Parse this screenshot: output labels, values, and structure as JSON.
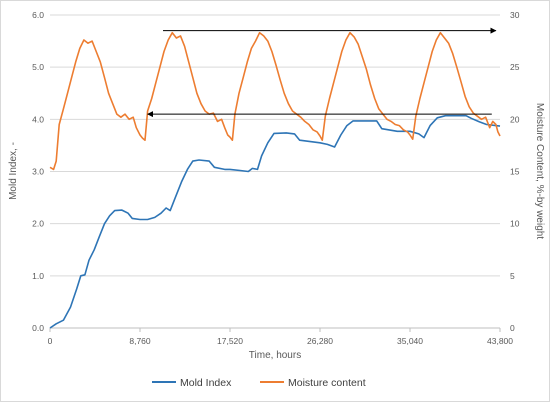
{
  "chart_data": {
    "type": "line",
    "xlabel": "Time, hours",
    "ylabel_left": "Mold Index, -",
    "ylabel_right": "Moisture Content, %-by weight",
    "xlim": [
      0,
      43800
    ],
    "ylim_left": [
      0,
      6
    ],
    "ylim_right": [
      0,
      30
    ],
    "x_ticks": [
      0,
      8760,
      17520,
      26280,
      35040,
      43800
    ],
    "x_tick_labels": [
      "0",
      "8,760",
      "17,520",
      "26,280",
      "35,040",
      "43,800"
    ],
    "y_left_ticks": [
      0,
      1,
      2,
      3,
      4,
      5,
      6
    ],
    "y_left_tick_labels": [
      "0.0",
      "1.0",
      "2.0",
      "3.0",
      "4.0",
      "5.0",
      "6.0"
    ],
    "y_right_ticks": [
      0,
      5,
      10,
      15,
      20,
      25,
      30
    ],
    "y_right_tick_labels": [
      "0",
      "5",
      "10",
      "15",
      "20",
      "25",
      "30"
    ],
    "grid": "horizontal",
    "legend_position": "bottom",
    "series": [
      {
        "name": "Mold Index",
        "axis": "left",
        "color": "#2e75b6",
        "points": [
          [
            0,
            0.0
          ],
          [
            600,
            0.08
          ],
          [
            1300,
            0.15
          ],
          [
            2000,
            0.4
          ],
          [
            2600,
            0.75
          ],
          [
            3000,
            1.0
          ],
          [
            3400,
            1.02
          ],
          [
            3800,
            1.3
          ],
          [
            4300,
            1.5
          ],
          [
            4800,
            1.75
          ],
          [
            5300,
            2.0
          ],
          [
            5800,
            2.15
          ],
          [
            6300,
            2.25
          ],
          [
            7000,
            2.26
          ],
          [
            7600,
            2.2
          ],
          [
            8000,
            2.1
          ],
          [
            8760,
            2.08
          ],
          [
            9500,
            2.08
          ],
          [
            10200,
            2.12
          ],
          [
            10800,
            2.2
          ],
          [
            11300,
            2.3
          ],
          [
            11700,
            2.25
          ],
          [
            12200,
            2.5
          ],
          [
            12800,
            2.8
          ],
          [
            13400,
            3.05
          ],
          [
            13900,
            3.2
          ],
          [
            14500,
            3.22
          ],
          [
            15500,
            3.2
          ],
          [
            16000,
            3.08
          ],
          [
            17000,
            3.04
          ],
          [
            17520,
            3.04
          ],
          [
            18500,
            3.02
          ],
          [
            19300,
            3.0
          ],
          [
            19700,
            3.06
          ],
          [
            20200,
            3.04
          ],
          [
            20600,
            3.3
          ],
          [
            21200,
            3.55
          ],
          [
            21800,
            3.73
          ],
          [
            23000,
            3.74
          ],
          [
            23800,
            3.72
          ],
          [
            24300,
            3.6
          ],
          [
            26280,
            3.55
          ],
          [
            27000,
            3.52
          ],
          [
            27700,
            3.47
          ],
          [
            28300,
            3.7
          ],
          [
            28900,
            3.88
          ],
          [
            29500,
            3.97
          ],
          [
            31800,
            3.97
          ],
          [
            32300,
            3.82
          ],
          [
            33800,
            3.77
          ],
          [
            35040,
            3.77
          ],
          [
            35900,
            3.72
          ],
          [
            36400,
            3.65
          ],
          [
            37000,
            3.88
          ],
          [
            37700,
            4.03
          ],
          [
            38500,
            4.07
          ],
          [
            40500,
            4.07
          ],
          [
            41000,
            4.02
          ],
          [
            41800,
            3.95
          ],
          [
            42500,
            3.9
          ],
          [
            43800,
            3.87
          ]
        ]
      },
      {
        "name": "Moisture content",
        "axis": "right",
        "color": "#ed7d31",
        "points": [
          [
            0,
            15.4
          ],
          [
            350,
            15.2
          ],
          [
            600,
            16.0
          ],
          [
            900,
            19.5
          ],
          [
            1300,
            21.0
          ],
          [
            1700,
            22.5
          ],
          [
            2100,
            24.0
          ],
          [
            2500,
            25.5
          ],
          [
            2900,
            26.8
          ],
          [
            3300,
            27.6
          ],
          [
            3700,
            27.3
          ],
          [
            4100,
            27.5
          ],
          [
            4500,
            26.5
          ],
          [
            4900,
            25.5
          ],
          [
            5300,
            24.0
          ],
          [
            5700,
            22.5
          ],
          [
            6100,
            21.5
          ],
          [
            6500,
            20.5
          ],
          [
            6900,
            20.2
          ],
          [
            7300,
            20.5
          ],
          [
            7700,
            20.0
          ],
          [
            8100,
            20.2
          ],
          [
            8400,
            19.2
          ],
          [
            8760,
            18.5
          ],
          [
            9000,
            18.2
          ],
          [
            9250,
            18.0
          ],
          [
            9500,
            20.8
          ],
          [
            9900,
            22.0
          ],
          [
            10300,
            23.5
          ],
          [
            10700,
            25.0
          ],
          [
            11100,
            26.5
          ],
          [
            11500,
            27.6
          ],
          [
            11900,
            28.3
          ],
          [
            12300,
            27.8
          ],
          [
            12700,
            28.0
          ],
          [
            13100,
            27.0
          ],
          [
            13500,
            25.5
          ],
          [
            13900,
            24.0
          ],
          [
            14300,
            22.5
          ],
          [
            14700,
            21.5
          ],
          [
            15100,
            20.8
          ],
          [
            15500,
            20.5
          ],
          [
            15900,
            20.6
          ],
          [
            16300,
            19.8
          ],
          [
            16700,
            20.0
          ],
          [
            17000,
            19.2
          ],
          [
            17300,
            18.5
          ],
          [
            17520,
            18.3
          ],
          [
            17750,
            18.0
          ],
          [
            18000,
            20.5
          ],
          [
            18400,
            22.5
          ],
          [
            18800,
            24.0
          ],
          [
            19200,
            25.5
          ],
          [
            19600,
            26.8
          ],
          [
            20000,
            27.5
          ],
          [
            20400,
            28.3
          ],
          [
            20800,
            28.0
          ],
          [
            21200,
            27.5
          ],
          [
            21600,
            26.5
          ],
          [
            22000,
            25.2
          ],
          [
            22400,
            23.8
          ],
          [
            22800,
            22.5
          ],
          [
            23200,
            21.5
          ],
          [
            23600,
            20.8
          ],
          [
            24000,
            20.5
          ],
          [
            24400,
            20.2
          ],
          [
            24800,
            19.8
          ],
          [
            25200,
            19.5
          ],
          [
            25600,
            19.0
          ],
          [
            26000,
            18.8
          ],
          [
            26280,
            18.4
          ],
          [
            26500,
            18.0
          ],
          [
            26800,
            20.3
          ],
          [
            27200,
            22.0
          ],
          [
            27600,
            23.5
          ],
          [
            28000,
            25.0
          ],
          [
            28400,
            26.5
          ],
          [
            28800,
            27.6
          ],
          [
            29200,
            28.3
          ],
          [
            29600,
            27.9
          ],
          [
            30000,
            27.2
          ],
          [
            30400,
            26.0
          ],
          [
            30800,
            24.8
          ],
          [
            31200,
            23.3
          ],
          [
            31600,
            22.0
          ],
          [
            32000,
            21.0
          ],
          [
            32400,
            20.5
          ],
          [
            32800,
            20.0
          ],
          [
            33200,
            19.8
          ],
          [
            33600,
            19.5
          ],
          [
            34000,
            19.4
          ],
          [
            34400,
            19.0
          ],
          [
            34800,
            18.8
          ],
          [
            35040,
            18.5
          ],
          [
            35300,
            18.1
          ],
          [
            35600,
            20.3
          ],
          [
            36000,
            22.0
          ],
          [
            36400,
            23.5
          ],
          [
            36800,
            25.0
          ],
          [
            37200,
            26.5
          ],
          [
            37600,
            27.6
          ],
          [
            38000,
            28.3
          ],
          [
            38400,
            27.8
          ],
          [
            38800,
            27.3
          ],
          [
            39200,
            26.3
          ],
          [
            39600,
            25.0
          ],
          [
            40000,
            23.6
          ],
          [
            40400,
            22.2
          ],
          [
            40800,
            21.2
          ],
          [
            41200,
            20.6
          ],
          [
            41600,
            20.3
          ],
          [
            42000,
            20.0
          ],
          [
            42400,
            20.2
          ],
          [
            42800,
            19.2
          ],
          [
            43100,
            19.8
          ],
          [
            43400,
            19.5
          ],
          [
            43600,
            18.8
          ],
          [
            43800,
            18.4
          ]
        ]
      }
    ],
    "annotations": [
      {
        "type": "arrow",
        "direction": "right",
        "x_from": 11000,
        "x_to": 43400,
        "y": 28.5,
        "axis": "right"
      },
      {
        "type": "arrow",
        "direction": "left",
        "x_from": 43000,
        "x_to": 9500,
        "y": 4.1,
        "axis": "left"
      }
    ]
  }
}
